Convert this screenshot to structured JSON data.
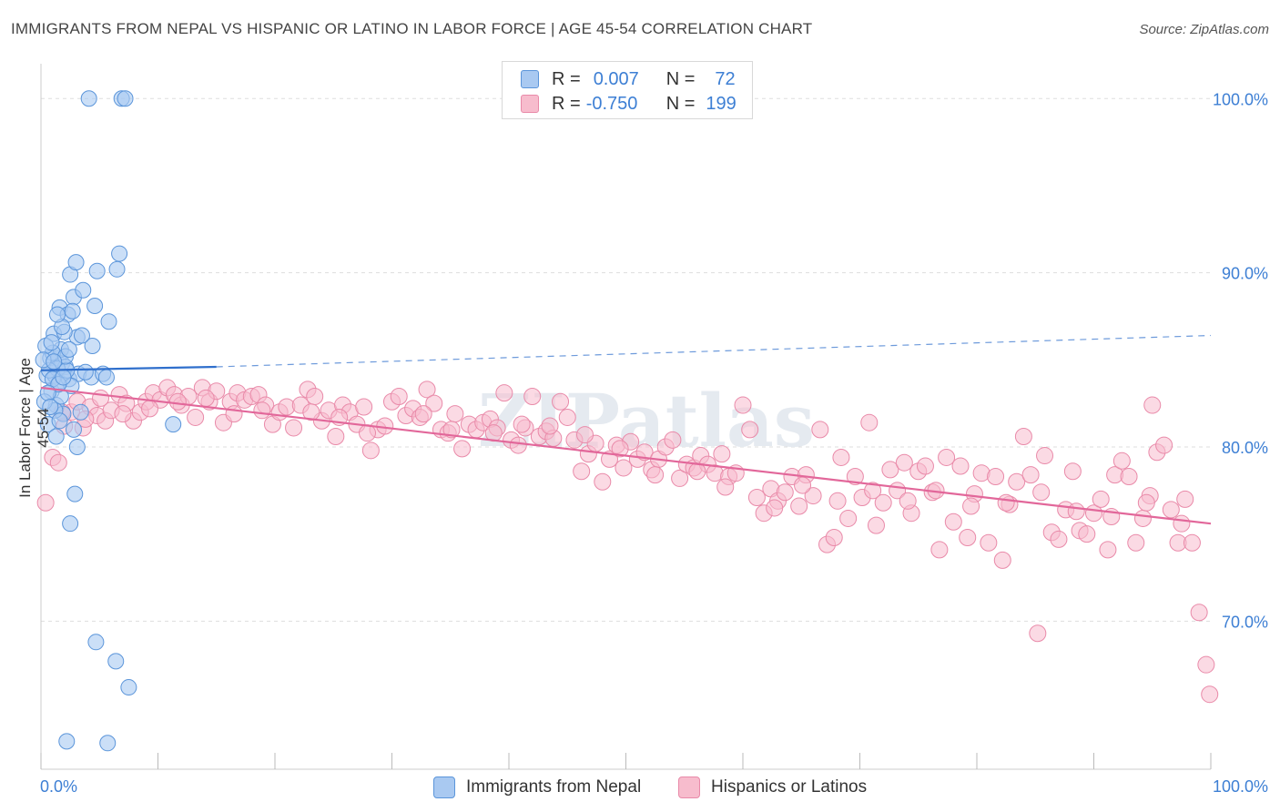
{
  "title": "IMMIGRANTS FROM NEPAL VS HISPANIC OR LATINO IN LABOR FORCE | AGE 45-54 CORRELATION CHART",
  "source": "Source: ZipAtlas.com",
  "watermark": "ZIPatlas",
  "legend": {
    "series1": {
      "r_label": "R =",
      "r_value": "0.007",
      "n_label": "N =",
      "n_value": "72"
    },
    "series2": {
      "r_label": "R =",
      "r_value": "-0.750",
      "n_label": "N =",
      "n_value": "199"
    }
  },
  "bottom_legend": [
    "Immigrants from Nepal",
    "Hispanics or Latinos"
  ],
  "colors": {
    "blue_fill": "#a9c9f1",
    "blue_stroke": "#5b95da",
    "blue_line": "#2f6fcc",
    "pink_fill": "#f7bccd",
    "pink_stroke": "#e98aa9",
    "pink_line": "#e2679a",
    "tick_label": "#3d7fd4",
    "grid": "#dddddd"
  },
  "chart_data": {
    "type": "scatter",
    "title": "IMMIGRANTS FROM NEPAL VS HISPANIC OR LATINO IN LABOR FORCE | AGE 45-54 CORRELATION CHART",
    "xlabel": "",
    "ylabel": "In Labor Force | Age 45-54",
    "xlim": [
      0,
      100
    ],
    "ylim": [
      61.5,
      102
    ],
    "x_tick_labels": [
      "0.0%",
      "100.0%"
    ],
    "y_ticks": [
      70,
      80,
      90,
      100
    ],
    "y_tick_labels": [
      "70.0%",
      "80.0%",
      "90.0%",
      "100.0%"
    ],
    "grid": true,
    "series": [
      {
        "name": "Immigrants from Nepal",
        "R": 0.007,
        "N": 72,
        "trend": {
          "x": [
            0,
            15
          ],
          "y": [
            84.4,
            84.6
          ],
          "dashed_to": [
            100,
            86.4
          ]
        },
        "points": [
          [
            4.1,
            100
          ],
          [
            6.9,
            100
          ],
          [
            7.2,
            100
          ],
          [
            0.8,
            85.1
          ],
          [
            1.5,
            85.1
          ],
          [
            1.8,
            84.8
          ],
          [
            0.5,
            84.1
          ],
          [
            1.2,
            84.1
          ],
          [
            2.1,
            84.6
          ],
          [
            0.9,
            83.2
          ],
          [
            1.3,
            82.4
          ],
          [
            1.6,
            83.7
          ],
          [
            2.4,
            83.9
          ],
          [
            1.9,
            81.9
          ],
          [
            0.6,
            81.3
          ],
          [
            2.8,
            88.6
          ],
          [
            3.6,
            89.0
          ],
          [
            4.6,
            88.1
          ],
          [
            5.8,
            87.2
          ],
          [
            1.6,
            88.0
          ],
          [
            2.3,
            87.6
          ],
          [
            1.1,
            86.5
          ],
          [
            1.7,
            85.6
          ],
          [
            3.1,
            86.3
          ],
          [
            4.4,
            85.8
          ],
          [
            2.5,
            89.9
          ],
          [
            3.0,
            90.6
          ],
          [
            4.8,
            90.1
          ],
          [
            6.5,
            90.2
          ],
          [
            6.7,
            91.1
          ],
          [
            2.0,
            86.6
          ],
          [
            1.0,
            85.4
          ],
          [
            1.4,
            84.5
          ],
          [
            3.2,
            84.2
          ],
          [
            4.3,
            84.0
          ],
          [
            5.3,
            84.2
          ],
          [
            5.6,
            84.0
          ],
          [
            2.6,
            83.5
          ],
          [
            1.7,
            82.9
          ],
          [
            1.2,
            82.1
          ],
          [
            3.4,
            82.0
          ],
          [
            2.8,
            81.0
          ],
          [
            1.3,
            80.6
          ],
          [
            3.1,
            80.0
          ],
          [
            11.3,
            81.3
          ],
          [
            2.9,
            77.3
          ],
          [
            2.5,
            75.6
          ],
          [
            4.7,
            68.8
          ],
          [
            6.4,
            67.7
          ],
          [
            7.5,
            66.2
          ],
          [
            2.2,
            63.1
          ],
          [
            5.7,
            63.0
          ],
          [
            0.4,
            85.8
          ],
          [
            0.7,
            84.4
          ],
          [
            1.0,
            83.9
          ],
          [
            1.5,
            83.6
          ],
          [
            2.2,
            84.4
          ],
          [
            0.3,
            82.6
          ],
          [
            1.8,
            86.9
          ],
          [
            2.7,
            87.8
          ],
          [
            0.9,
            86.0
          ],
          [
            2.1,
            85.2
          ],
          [
            1.4,
            87.6
          ],
          [
            3.5,
            86.4
          ],
          [
            0.6,
            83.1
          ],
          [
            1.9,
            84.0
          ],
          [
            2.4,
            85.6
          ],
          [
            0.8,
            82.3
          ],
          [
            1.6,
            81.5
          ],
          [
            3.8,
            84.3
          ],
          [
            0.2,
            85.0
          ],
          [
            1.1,
            84.9
          ]
        ]
      },
      {
        "name": "Hispanics or Latinos",
        "R": -0.75,
        "N": 199,
        "trend": {
          "x": [
            0,
            100
          ],
          "y": [
            83.4,
            75.6
          ]
        },
        "points": [
          [
            0.4,
            76.8
          ],
          [
            1.0,
            79.4
          ],
          [
            1.5,
            79.1
          ],
          [
            2.0,
            81.2
          ],
          [
            2.6,
            82.0
          ],
          [
            3.1,
            82.6
          ],
          [
            3.6,
            81.1
          ],
          [
            4.2,
            82.3
          ],
          [
            4.8,
            81.8
          ],
          [
            5.5,
            81.5
          ],
          [
            6.0,
            82.1
          ],
          [
            6.7,
            83.0
          ],
          [
            7.3,
            82.5
          ],
          [
            7.9,
            81.5
          ],
          [
            8.5,
            82.0
          ],
          [
            9.0,
            82.6
          ],
          [
            9.6,
            83.1
          ],
          [
            10.2,
            82.7
          ],
          [
            10.8,
            83.4
          ],
          [
            11.4,
            83.0
          ],
          [
            12.0,
            82.4
          ],
          [
            12.6,
            82.9
          ],
          [
            13.2,
            81.7
          ],
          [
            13.8,
            83.4
          ],
          [
            14.4,
            82.6
          ],
          [
            15.0,
            83.2
          ],
          [
            15.6,
            81.4
          ],
          [
            16.2,
            82.6
          ],
          [
            16.8,
            83.1
          ],
          [
            17.4,
            82.7
          ],
          [
            18.0,
            82.9
          ],
          [
            18.6,
            83.0
          ],
          [
            19.2,
            82.4
          ],
          [
            19.8,
            81.3
          ],
          [
            20.4,
            82.0
          ],
          [
            21.0,
            82.3
          ],
          [
            21.6,
            81.1
          ],
          [
            22.2,
            82.4
          ],
          [
            22.8,
            83.3
          ],
          [
            23.4,
            82.9
          ],
          [
            24.0,
            81.5
          ],
          [
            24.6,
            82.1
          ],
          [
            25.2,
            80.6
          ],
          [
            25.8,
            82.4
          ],
          [
            26.4,
            82.0
          ],
          [
            27.0,
            81.3
          ],
          [
            27.6,
            82.3
          ],
          [
            28.2,
            79.8
          ],
          [
            28.8,
            81.0
          ],
          [
            29.4,
            81.2
          ],
          [
            30.0,
            82.6
          ],
          [
            30.6,
            82.9
          ],
          [
            31.2,
            81.8
          ],
          [
            31.8,
            82.2
          ],
          [
            32.4,
            81.7
          ],
          [
            33.0,
            83.3
          ],
          [
            33.6,
            82.5
          ],
          [
            34.2,
            81.0
          ],
          [
            34.8,
            80.8
          ],
          [
            35.4,
            81.9
          ],
          [
            36.0,
            79.9
          ],
          [
            36.6,
            81.3
          ],
          [
            37.2,
            81.0
          ],
          [
            37.8,
            81.4
          ],
          [
            38.4,
            81.6
          ],
          [
            39.0,
            81.1
          ],
          [
            39.6,
            83.1
          ],
          [
            40.2,
            80.4
          ],
          [
            40.8,
            80.1
          ],
          [
            41.4,
            81.1
          ],
          [
            42.0,
            82.9
          ],
          [
            42.6,
            80.6
          ],
          [
            43.2,
            80.9
          ],
          [
            43.8,
            80.5
          ],
          [
            44.4,
            82.6
          ],
          [
            45.0,
            81.7
          ],
          [
            45.6,
            80.4
          ],
          [
            46.2,
            78.6
          ],
          [
            46.8,
            79.6
          ],
          [
            47.4,
            80.2
          ],
          [
            48.0,
            78.0
          ],
          [
            48.6,
            79.3
          ],
          [
            49.2,
            80.1
          ],
          [
            49.8,
            78.8
          ],
          [
            50.4,
            80.3
          ],
          [
            51.0,
            79.3
          ],
          [
            51.6,
            79.7
          ],
          [
            52.2,
            78.7
          ],
          [
            52.8,
            79.3
          ],
          [
            53.4,
            80.0
          ],
          [
            54.0,
            80.4
          ],
          [
            54.6,
            78.2
          ],
          [
            55.2,
            79.0
          ],
          [
            55.8,
            78.8
          ],
          [
            56.4,
            79.5
          ],
          [
            57.0,
            79.0
          ],
          [
            57.6,
            78.5
          ],
          [
            58.2,
            79.6
          ],
          [
            58.8,
            78.3
          ],
          [
            59.4,
            78.5
          ],
          [
            60.0,
            82.4
          ],
          [
            60.6,
            81.0
          ],
          [
            61.2,
            77.1
          ],
          [
            61.8,
            76.2
          ],
          [
            62.4,
            77.6
          ],
          [
            63.0,
            76.9
          ],
          [
            63.6,
            77.4
          ],
          [
            64.2,
            78.3
          ],
          [
            64.8,
            76.6
          ],
          [
            65.4,
            78.4
          ],
          [
            66.0,
            77.2
          ],
          [
            66.6,
            81.0
          ],
          [
            67.2,
            74.4
          ],
          [
            67.8,
            74.8
          ],
          [
            68.4,
            79.4
          ],
          [
            69.0,
            75.9
          ],
          [
            69.6,
            78.3
          ],
          [
            70.2,
            77.1
          ],
          [
            70.8,
            81.4
          ],
          [
            71.4,
            75.5
          ],
          [
            72.0,
            76.8
          ],
          [
            72.6,
            78.7
          ],
          [
            73.2,
            77.5
          ],
          [
            73.8,
            79.1
          ],
          [
            74.4,
            76.2
          ],
          [
            75.0,
            78.6
          ],
          [
            75.6,
            78.9
          ],
          [
            76.2,
            77.4
          ],
          [
            76.8,
            74.1
          ],
          [
            77.4,
            79.4
          ],
          [
            78.0,
            75.7
          ],
          [
            78.6,
            78.9
          ],
          [
            79.2,
            74.8
          ],
          [
            79.8,
            77.3
          ],
          [
            80.4,
            78.5
          ],
          [
            81.0,
            74.5
          ],
          [
            81.6,
            78.3
          ],
          [
            82.2,
            73.5
          ],
          [
            82.8,
            76.7
          ],
          [
            83.4,
            78.0
          ],
          [
            84.0,
            80.6
          ],
          [
            84.6,
            78.4
          ],
          [
            85.2,
            69.3
          ],
          [
            85.8,
            79.5
          ],
          [
            86.4,
            75.1
          ],
          [
            87.0,
            74.7
          ],
          [
            87.6,
            76.4
          ],
          [
            88.2,
            78.6
          ],
          [
            88.8,
            75.2
          ],
          [
            89.4,
            75.0
          ],
          [
            90.0,
            76.2
          ],
          [
            90.6,
            77.0
          ],
          [
            91.2,
            74.1
          ],
          [
            91.8,
            78.4
          ],
          [
            92.4,
            79.2
          ],
          [
            93.0,
            78.3
          ],
          [
            93.6,
            74.5
          ],
          [
            94.2,
            75.9
          ],
          [
            94.8,
            77.2
          ],
          [
            95.4,
            79.7
          ],
          [
            96.0,
            80.1
          ],
          [
            96.6,
            76.4
          ],
          [
            97.2,
            74.5
          ],
          [
            97.8,
            77.0
          ],
          [
            98.4,
            74.5
          ],
          [
            99.0,
            70.5
          ],
          [
            99.6,
            67.5
          ],
          [
            99.9,
            65.8
          ],
          [
            1.8,
            82.0
          ],
          [
            3.8,
            81.6
          ],
          [
            5.1,
            82.8
          ],
          [
            7.0,
            81.9
          ],
          [
            9.3,
            82.2
          ],
          [
            11.7,
            82.6
          ],
          [
            14.1,
            82.8
          ],
          [
            16.5,
            81.9
          ],
          [
            18.9,
            82.1
          ],
          [
            23.1,
            82.0
          ],
          [
            25.5,
            81.7
          ],
          [
            27.9,
            80.8
          ],
          [
            32.7,
            81.9
          ],
          [
            35.1,
            81.0
          ],
          [
            38.7,
            80.8
          ],
          [
            41.1,
            81.3
          ],
          [
            43.5,
            81.2
          ],
          [
            46.5,
            80.7
          ],
          [
            49.5,
            79.9
          ],
          [
            52.5,
            78.4
          ],
          [
            56.1,
            78.6
          ],
          [
            58.5,
            77.7
          ],
          [
            62.7,
            76.5
          ],
          [
            65.1,
            77.8
          ],
          [
            68.1,
            76.9
          ],
          [
            71.1,
            77.5
          ],
          [
            74.1,
            76.9
          ],
          [
            76.5,
            77.5
          ],
          [
            79.5,
            76.6
          ],
          [
            82.5,
            76.8
          ],
          [
            85.5,
            77.4
          ],
          [
            88.5,
            76.3
          ],
          [
            91.5,
            76.0
          ],
          [
            94.5,
            76.8
          ],
          [
            97.5,
            75.6
          ],
          [
            95.0,
            82.4
          ]
        ]
      }
    ]
  }
}
